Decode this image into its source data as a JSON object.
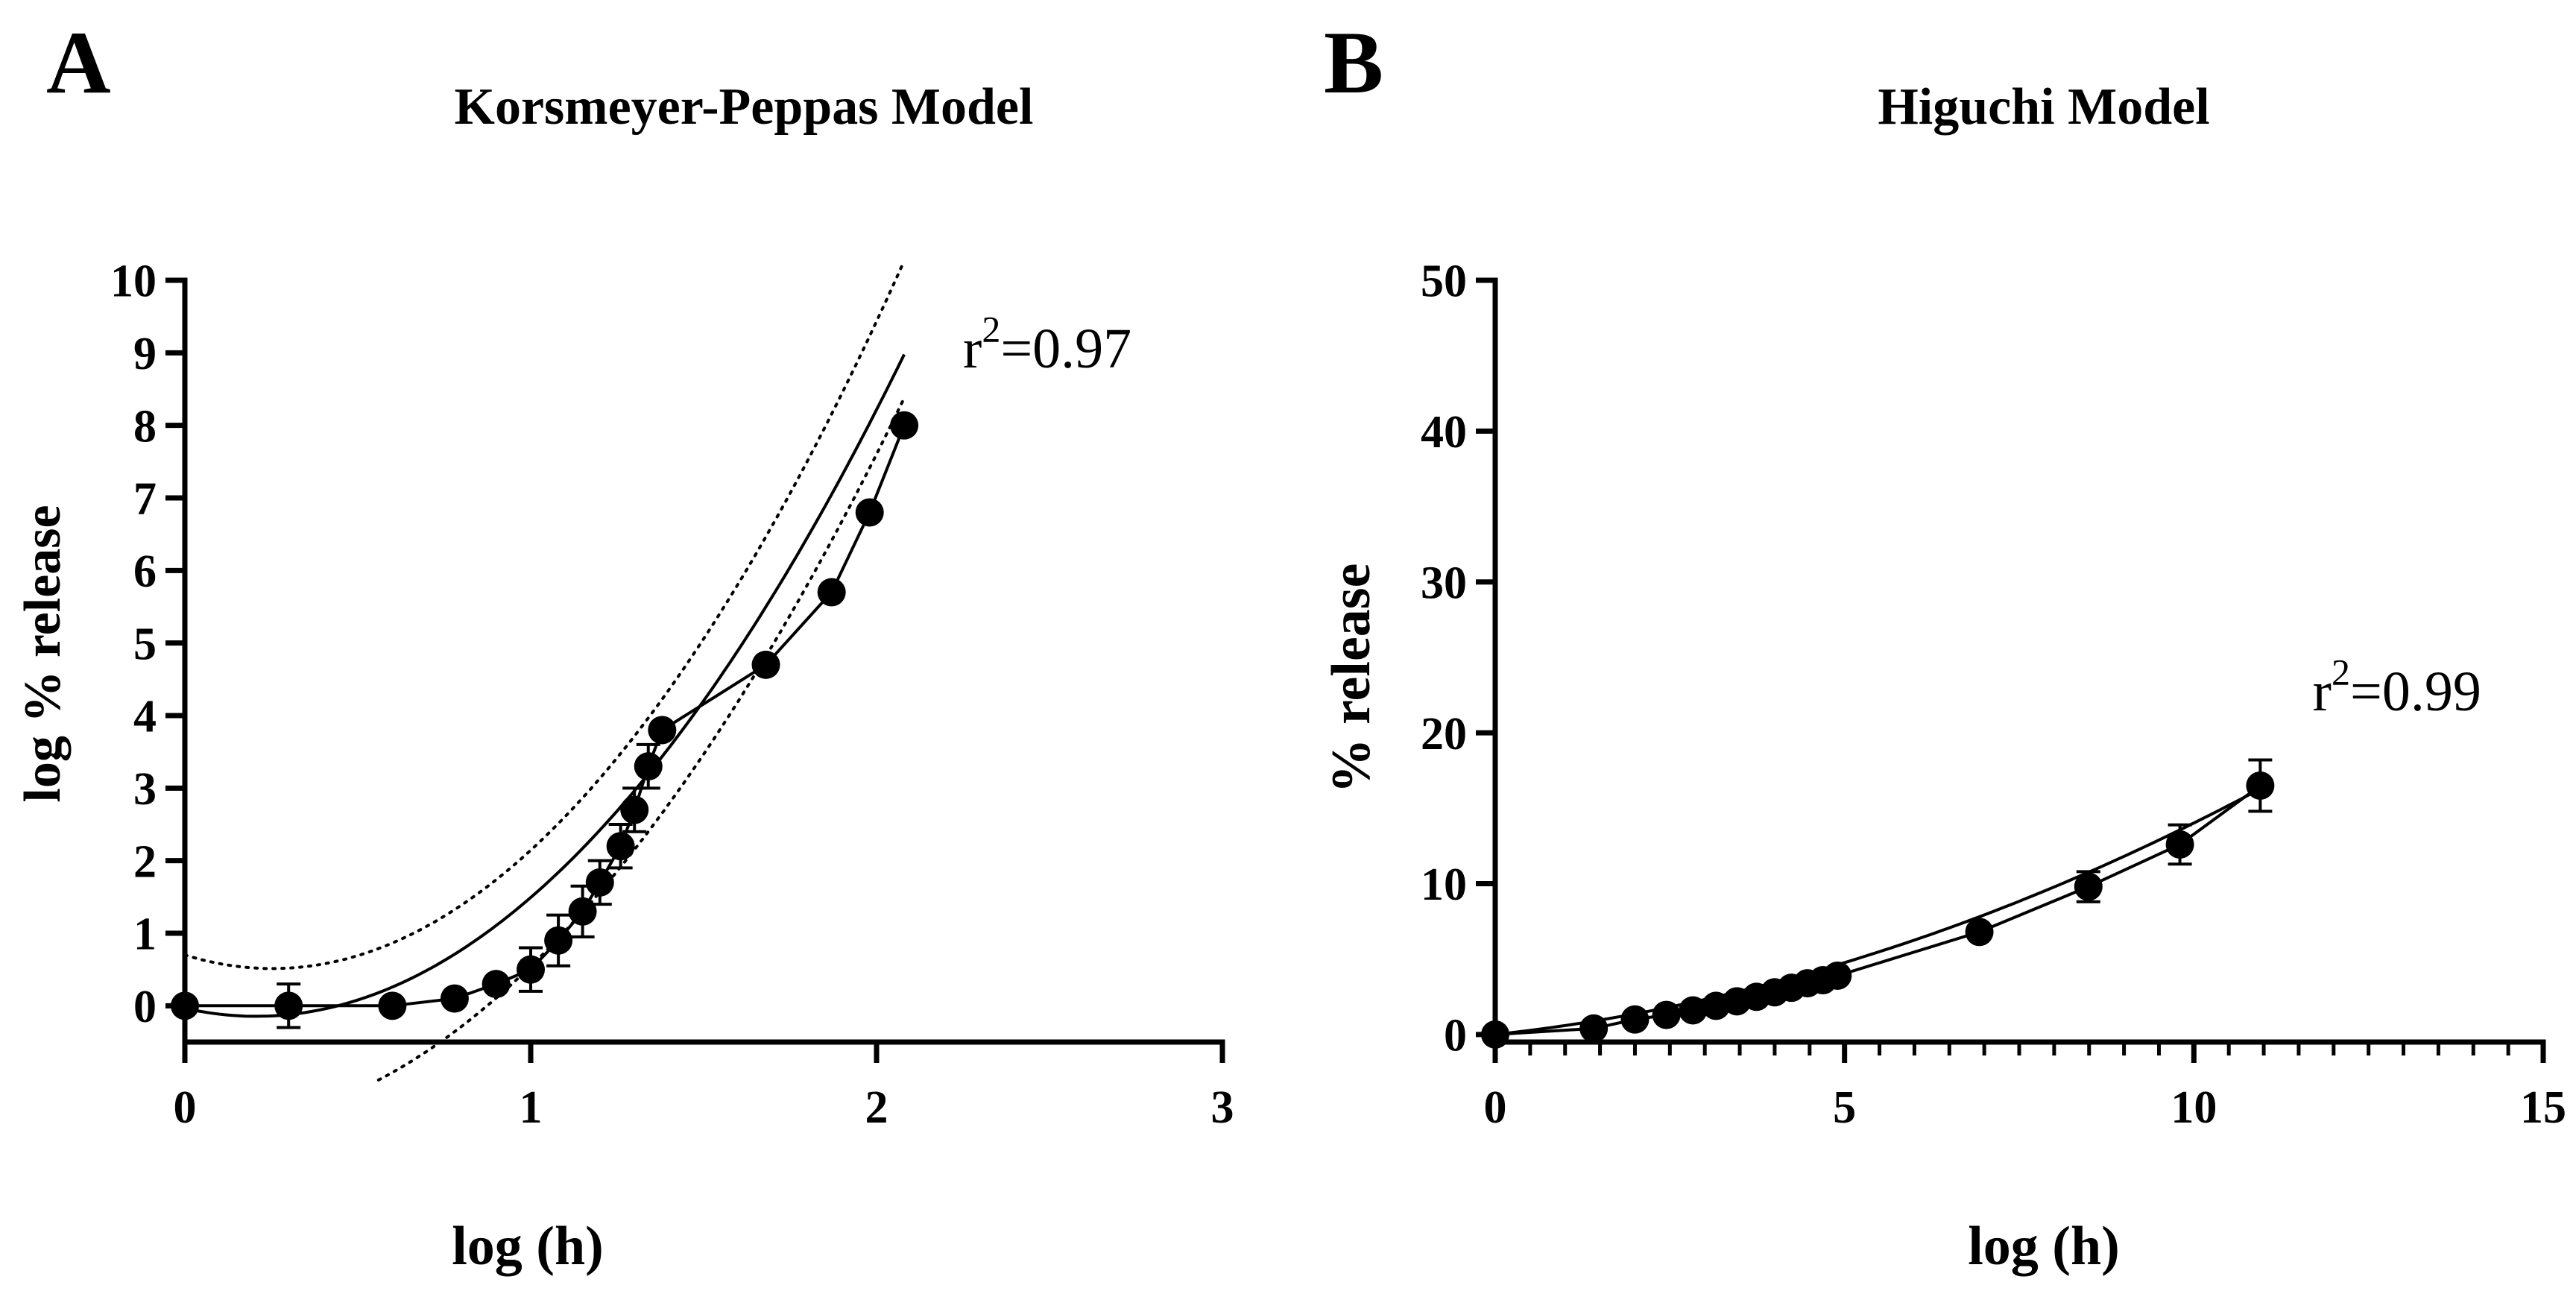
{
  "chart_data": [
    {
      "panel_label": "A",
      "type": "line",
      "title": "Korsmeyer-Peppas Model",
      "xlabel": "log (h)",
      "ylabel": "log % release",
      "xlim": [
        0,
        3
      ],
      "ylim": [
        -0.5,
        10
      ],
      "xticks": [
        0,
        1,
        2,
        3
      ],
      "yticks": [
        0,
        1,
        2,
        3,
        4,
        5,
        6,
        7,
        8,
        9,
        10
      ],
      "x_minor_ticks": [],
      "grid": false,
      "legend": "none",
      "annotation": {
        "text": "=0.97",
        "r_symbol": "r",
        "superscript": "2",
        "x": 2.25,
        "y": 8.8
      },
      "series": [
        {
          "name": "data",
          "style": "markers-connected",
          "x": [
            0,
            0.3,
            0.6,
            0.78,
            0.9,
            1.0,
            1.08,
            1.15,
            1.2,
            1.26,
            1.3,
            1.34,
            1.38,
            1.68,
            1.87,
            1.98,
            2.08
          ],
          "y": [
            0,
            0,
            0,
            0.1,
            0.3,
            0.5,
            0.9,
            1.3,
            1.7,
            2.2,
            2.7,
            3.3,
            3.8,
            4.7,
            5.7,
            6.8,
            8.0
          ],
          "err": [
            0,
            0.3,
            0,
            0,
            0,
            0.3,
            0.35,
            0.35,
            0.3,
            0.3,
            0.3,
            0.3,
            0,
            0,
            0,
            0,
            0
          ]
        },
        {
          "name": "fit",
          "style": "solid",
          "poly": [
            -0.0345,
            -1.0714,
            2.5982
          ],
          "x_range": [
            0,
            2.08
          ]
        },
        {
          "name": "upper band",
          "style": "dotted",
          "poly": [
            0.7,
            -1.4786,
            2.9227
          ],
          "x_range": [
            0,
            2.08
          ]
        },
        {
          "name": "lower band",
          "style": "dotted",
          "poly": [
            -1.66,
            -0.2214,
            2.4264
          ],
          "x_range": [
            0.56,
            2.08
          ]
        }
      ]
    },
    {
      "panel_label": "B",
      "type": "line",
      "title": "Higuchi Model",
      "xlabel": "log (h)",
      "ylabel": "% release",
      "xlim": [
        0,
        15
      ],
      "ylim": [
        -0.5,
        50
      ],
      "xticks": [
        0,
        5,
        10,
        15
      ],
      "yticks": [
        0,
        10,
        20,
        30,
        40,
        50
      ],
      "x_minor_ticks": [
        0.5,
        1,
        1.5,
        2,
        2.5,
        3,
        3.5,
        4,
        4.5,
        5.5,
        6,
        6.5,
        7,
        7.5,
        8,
        8.5,
        9,
        9.5,
        10.5,
        11,
        11.5,
        12,
        12.5,
        13,
        13.5,
        14,
        14.5
      ],
      "grid": false,
      "legend": "none",
      "annotation": {
        "text": "=0.99",
        "r_symbol": "r",
        "superscript": "2",
        "x": 11.7,
        "y": 21.5
      },
      "series": [
        {
          "name": "data",
          "style": "markers-connected",
          "x": [
            0,
            1.41,
            2.0,
            2.45,
            2.83,
            3.16,
            3.46,
            3.74,
            4.0,
            4.24,
            4.47,
            4.69,
            4.9,
            6.93,
            8.49,
            9.8,
            10.95
          ],
          "y": [
            0,
            0.4,
            1.0,
            1.3,
            1.6,
            1.9,
            2.2,
            2.5,
            2.8,
            3.1,
            3.4,
            3.6,
            3.9,
            6.8,
            9.8,
            12.6,
            16.5
          ],
          "err": [
            0,
            0,
            0,
            0,
            0,
            0,
            0,
            0,
            0,
            0,
            0,
            0,
            0,
            0,
            1.0,
            1.3,
            1.7
          ]
        },
        {
          "name": "fit",
          "style": "solid",
          "poly": [
            0,
            0.505,
            0.0897
          ],
          "x_range": [
            0,
            10.95
          ]
        }
      ]
    }
  ]
}
